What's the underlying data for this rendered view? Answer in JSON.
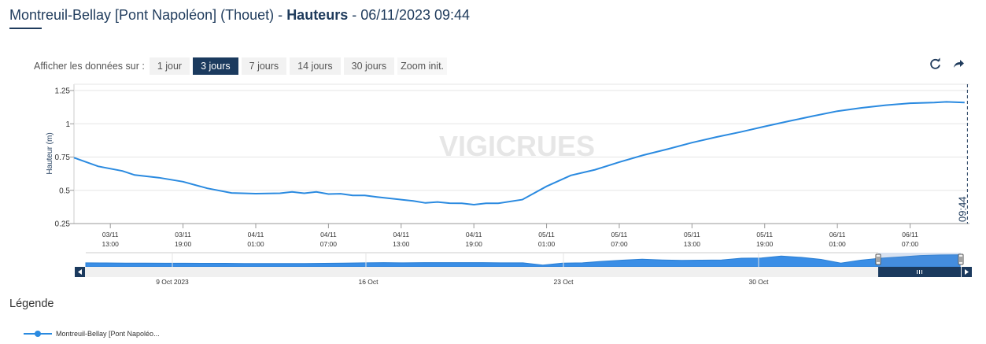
{
  "header": {
    "title_prefix": "Montreuil-Bellay [Pont Napoléon] (Thouet) -",
    "title_bold": "Hauteurs",
    "title_suffix": "- 06/11/2023 09:44"
  },
  "range_selector": {
    "label": "Afficher les données sur :",
    "buttons": [
      {
        "label": "1 jour",
        "active": false
      },
      {
        "label": "3 jours",
        "active": true
      },
      {
        "label": "7 jours",
        "active": false
      },
      {
        "label": "14 jours",
        "active": false
      },
      {
        "label": "30 jours",
        "active": false
      }
    ],
    "zoom_label": "Zoom init."
  },
  "toolbar": {
    "reload_icon": "refresh-icon",
    "export_icon": "share-arrow-icon"
  },
  "watermark": "VIGICRUES",
  "legend": {
    "title": "Légende",
    "series_label": "Montreuil-Bellay [Pont Napoléo..."
  },
  "colors": {
    "series": "#2a8ae0",
    "navigator_fill": "#3a8ee6",
    "active_button": "#1b3a5e",
    "title": "#1f3b5c"
  },
  "chart_data": {
    "type": "line",
    "ylabel": "Hauteur (m)",
    "ylim": [
      0.25,
      1.25
    ],
    "yticks": [
      "1.25",
      "1",
      "0.75",
      "0.5",
      "0.25"
    ],
    "xlim_hours": [
      -3,
      70.9
    ],
    "xticks": [
      {
        "h": 0,
        "day": "03/11",
        "time": "13:00"
      },
      {
        "h": 6,
        "day": "03/11",
        "time": "19:00"
      },
      {
        "h": 12,
        "day": "04/11",
        "time": "01:00"
      },
      {
        "h": 18,
        "day": "04/11",
        "time": "07:00"
      },
      {
        "h": 24,
        "day": "04/11",
        "time": "13:00"
      },
      {
        "h": 30,
        "day": "04/11",
        "time": "19:00"
      },
      {
        "h": 36,
        "day": "05/11",
        "time": "01:00"
      },
      {
        "h": 42,
        "day": "05/11",
        "time": "07:00"
      },
      {
        "h": 48,
        "day": "05/11",
        "time": "13:00"
      },
      {
        "h": 54,
        "day": "05/11",
        "time": "19:00"
      },
      {
        "h": 60,
        "day": "06/11",
        "time": "01:00"
      },
      {
        "h": 66,
        "day": "06/11",
        "time": "07:00"
      }
    ],
    "now_marker": {
      "h": 70.73,
      "label": "09:44"
    },
    "series": [
      {
        "name": "Montreuil-Bellay [Pont Napoléo...",
        "x_hours": [
          -3,
          -1,
          1,
          2,
          4,
          6,
          8,
          10,
          12,
          14,
          15,
          16,
          17,
          18,
          19,
          20,
          21,
          22,
          24,
          25,
          26,
          27,
          28,
          29,
          30,
          31,
          32,
          34,
          36,
          38,
          40,
          42,
          44,
          46,
          48,
          50,
          52,
          54,
          56,
          58,
          60,
          62,
          64,
          66,
          68,
          69,
          70.5
        ],
        "values": [
          0.745,
          0.68,
          0.645,
          0.615,
          0.595,
          0.565,
          0.515,
          0.48,
          0.475,
          0.478,
          0.488,
          0.478,
          0.488,
          0.472,
          0.474,
          0.462,
          0.462,
          0.45,
          0.43,
          0.42,
          0.405,
          0.412,
          0.403,
          0.402,
          0.392,
          0.402,
          0.402,
          0.43,
          0.53,
          0.612,
          0.655,
          0.712,
          0.765,
          0.81,
          0.858,
          0.9,
          0.938,
          0.98,
          1.02,
          1.058,
          1.095,
          1.12,
          1.14,
          1.155,
          1.16,
          1.165,
          1.16
        ]
      }
    ]
  },
  "navigator": {
    "labels": [
      "9 Oct 2023",
      "16 Oct",
      "23 Oct",
      "30 Oct"
    ],
    "values": [
      0.5,
      0.49,
      0.48,
      0.48,
      0.47,
      0.47,
      0.46,
      0.46,
      0.45,
      0.45,
      0.44,
      0.45,
      0.46,
      0.48,
      0.5,
      0.52,
      0.5,
      0.52,
      0.52,
      0.52,
      0.52,
      0.5,
      0.5,
      0.32,
      0.48,
      0.5,
      0.62,
      0.72,
      0.8,
      0.74,
      0.7,
      0.72,
      0.74,
      0.88,
      0.9,
      1.05,
      0.95,
      0.78,
      0.48,
      0.72,
      0.88,
      0.98,
      1.1,
      1.14,
      1.16
    ]
  }
}
